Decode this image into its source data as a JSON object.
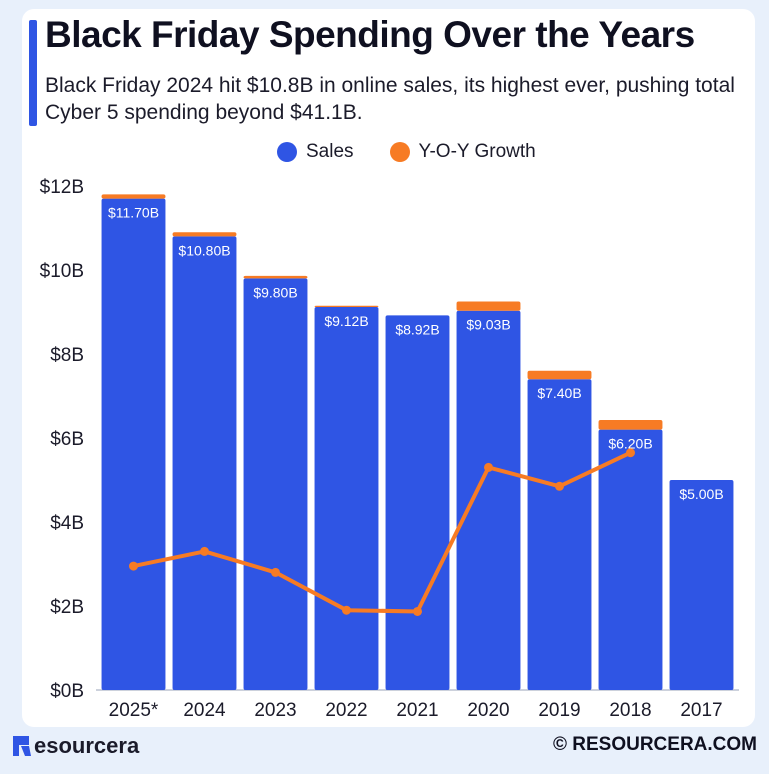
{
  "header": {
    "title": "Black Friday Spending Over the Years",
    "subtitle": "Black Friday 2024 hit $10.8B in online sales, its highest ever, pushing total Cyber 5 spending beyond $41.1B."
  },
  "legend": {
    "sales_label": "Sales",
    "growth_label": "Y-O-Y Growth"
  },
  "colors": {
    "sales": "#2f55e4",
    "growth": "#f77b24",
    "background": "#e8f0fb"
  },
  "chart_data": {
    "type": "bar",
    "categories": [
      "2025*",
      "2024",
      "2023",
      "2022",
      "2021",
      "2020",
      "2019",
      "2018",
      "2017"
    ],
    "series": [
      {
        "name": "Sales",
        "values": [
          11.7,
          10.8,
          9.8,
          9.12,
          8.92,
          9.03,
          7.4,
          6.2,
          5.0
        ]
      },
      {
        "name": "Y-O-Y Growth",
        "values": [
          0.1,
          0.1,
          0.06,
          0.03,
          0,
          0.22,
          0.2,
          0.23,
          0
        ]
      }
    ],
    "growth_line": [
      2.95,
      3.3,
      2.8,
      1.9,
      1.87,
      5.3,
      4.85,
      5.65
    ],
    "data_labels": [
      "$11.70B",
      "$10.80B",
      "$9.80B",
      "$9.12B",
      "$8.92B",
      "$9.03B",
      "$7.40B",
      "$6.20B",
      "$5.00B"
    ],
    "y_ticks": [
      "$0B",
      "$2B",
      "$4B",
      "$6B",
      "$8B",
      "$10B",
      "$12B"
    ],
    "ylim": [
      0,
      12
    ],
    "grid": false,
    "legend_position": "top-center"
  },
  "footer": {
    "brand": "esourcera",
    "copyright": "© RESOURCERA.COM"
  }
}
